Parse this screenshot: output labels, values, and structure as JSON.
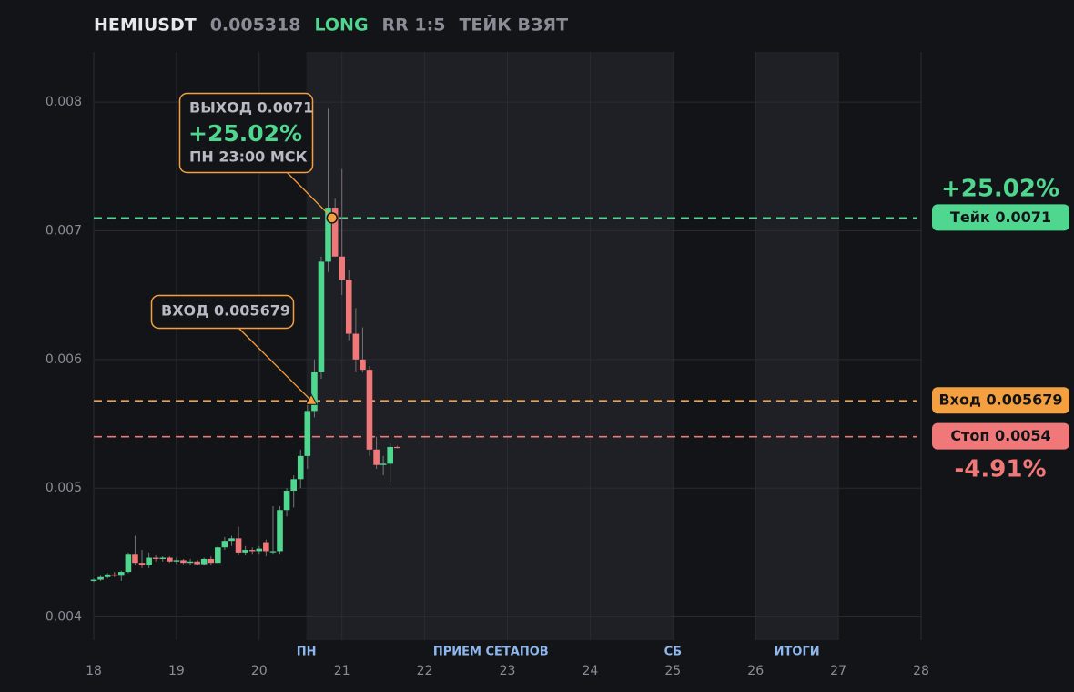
{
  "chart_data": {
    "type": "candlestick",
    "symbol": "HEMIUSDT",
    "price": 0.005318,
    "side": "LONG",
    "rr": "RR 1:5",
    "status": "ТЕЙК ВЗЯТ",
    "x": [
      18,
      18.083,
      18.167,
      18.25,
      18.333,
      18.417,
      18.5,
      18.583,
      18.667,
      18.75,
      18.833,
      18.917,
      19,
      19.083,
      19.167,
      19.25,
      19.333,
      19.417,
      19.5,
      19.583,
      19.667,
      19.75,
      19.833,
      19.917,
      20,
      20.083,
      20.167,
      20.25,
      20.333,
      20.417,
      20.5,
      20.583,
      20.667,
      20.75,
      20.833,
      20.917,
      21,
      21.083,
      21.167,
      21.25,
      21.333,
      21.417,
      21.5,
      21.583,
      21.667
    ],
    "open": [
      0.00428,
      0.00429,
      0.00431,
      0.00433,
      0.00432,
      0.00435,
      0.00449,
      0.00442,
      0.0044,
      0.00446,
      0.00445,
      0.00446,
      0.00443,
      0.00444,
      0.00442,
      0.00443,
      0.00441,
      0.00445,
      0.00442,
      0.00454,
      0.00459,
      0.00461,
      0.0045,
      0.00452,
      0.00451,
      0.00458,
      0.00451,
      0.00451,
      0.00483,
      0.00498,
      0.00507,
      0.00525,
      0.0056,
      0.0059,
      0.00676,
      0.00718,
      0.0068,
      0.00662,
      0.0062,
      0.006,
      0.00592,
      0.0053,
      0.00518,
      0.00519,
      0.00532
    ],
    "high": [
      0.0043,
      0.00432,
      0.00434,
      0.00435,
      0.00436,
      0.0045,
      0.00463,
      0.00452,
      0.0045,
      0.00448,
      0.00447,
      0.00447,
      0.00446,
      0.00445,
      0.00445,
      0.00444,
      0.00446,
      0.00447,
      0.00455,
      0.00462,
      0.00463,
      0.0047,
      0.00455,
      0.00454,
      0.00455,
      0.0046,
      0.00486,
      0.00486,
      0.005,
      0.0051,
      0.0053,
      0.00565,
      0.006,
      0.0068,
      0.00795,
      0.00725,
      0.00748,
      0.0067,
      0.0064,
      0.00625,
      0.00595,
      0.0054,
      0.00525,
      0.00535,
      0.00533
    ],
    "low": [
      0.00427,
      0.00428,
      0.0043,
      0.00431,
      0.00428,
      0.00434,
      0.0044,
      0.00438,
      0.00438,
      0.00443,
      0.00443,
      0.00442,
      0.00441,
      0.00441,
      0.0044,
      0.0044,
      0.0044,
      0.0044,
      0.00441,
      0.00452,
      0.00455,
      0.00448,
      0.00448,
      0.00449,
      0.00449,
      0.00447,
      0.00449,
      0.00449,
      0.00478,
      0.00485,
      0.005,
      0.00515,
      0.00555,
      0.00585,
      0.00668,
      0.0068,
      0.0065,
      0.00615,
      0.0059,
      0.0059,
      0.00525,
      0.00515,
      0.0051,
      0.00505,
      0.00531
    ],
    "close": [
      0.00429,
      0.00431,
      0.00433,
      0.00432,
      0.00435,
      0.00449,
      0.00442,
      0.0044,
      0.00446,
      0.00445,
      0.00446,
      0.00443,
      0.00444,
      0.00442,
      0.00443,
      0.00441,
      0.00445,
      0.00442,
      0.00454,
      0.00459,
      0.00461,
      0.0045,
      0.00452,
      0.00451,
      0.00453,
      0.00451,
      0.00451,
      0.00483,
      0.00498,
      0.00507,
      0.00525,
      0.0056,
      0.0059,
      0.00676,
      0.00718,
      0.0068,
      0.00662,
      0.0062,
      0.006,
      0.00592,
      0.0053,
      0.00518,
      0.00519,
      0.00532,
      0.005318
    ],
    "up_color": "#4fd68f",
    "down_color": "#f07878",
    "xlim": [
      18,
      28
    ],
    "xticks": [
      18,
      19,
      20,
      21,
      22,
      23,
      24,
      25,
      26,
      27,
      28
    ],
    "ylim": [
      0.00382,
      0.00839
    ],
    "yticks": [
      0.004,
      0.005,
      0.006,
      0.007,
      0.008
    ],
    "shaded": [
      [
        20.57,
        25
      ],
      [
        26,
        27
      ]
    ],
    "sessions": [
      {
        "label": "ПН",
        "x": 20.57
      },
      {
        "label": "ПРИЕМ СЕТАПОВ",
        "x": 22.8
      },
      {
        "label": "СБ",
        "x": 25
      },
      {
        "label": "ИТОГИ",
        "x": 26.5
      }
    ],
    "levels": [
      {
        "label": "Тейк 0.0071",
        "value": 0.0071,
        "color": "#4fd68f"
      },
      {
        "label": "Вход 0.005679",
        "value": 0.005679,
        "color": "#f5a040"
      },
      {
        "label": "Стоп 0.0054",
        "value": 0.0054,
        "color": "#f07878"
      }
    ],
    "take_pct": "+25.02%",
    "stop_pct": "-4.91%",
    "entry": {
      "x": 20.63,
      "value": 0.005679,
      "label": "ВХОД 0.005679"
    },
    "exit": {
      "x": 20.88,
      "value": 0.0071,
      "label": "ВЫХОД 0.0071",
      "pct": "+25.02%",
      "time": "ПН 23:00 МСК"
    }
  }
}
